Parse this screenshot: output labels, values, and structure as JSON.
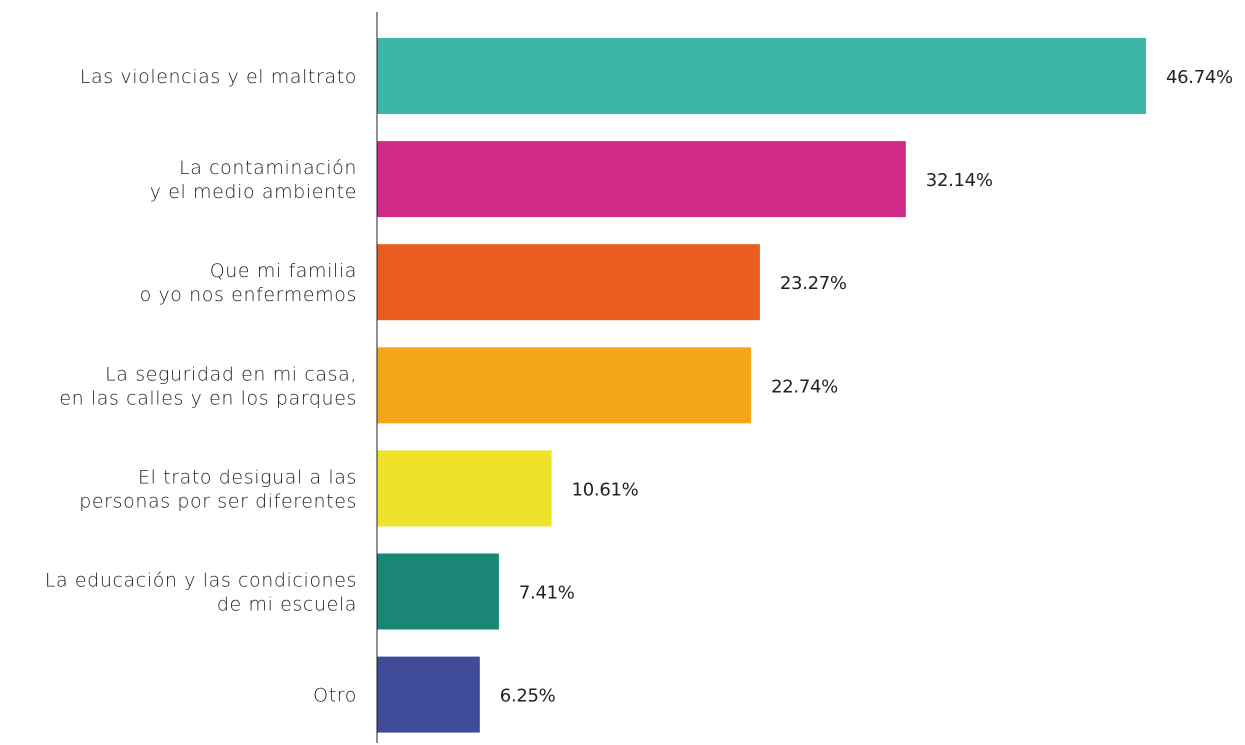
{
  "chart_data": {
    "type": "bar",
    "orientation": "horizontal",
    "title": "",
    "xlabel": "",
    "ylabel": "",
    "xlim": [
      0,
      46.74
    ],
    "grid": false,
    "categories": [
      [
        "Las violencias y el maltrato"
      ],
      [
        "La contaminación",
        "y el medio ambiente"
      ],
      [
        "Que mi familia",
        "o yo nos enfermemos"
      ],
      [
        "La seguridad en mi casa,",
        "en las calles y en los parques"
      ],
      [
        "El trato desigual a las",
        "personas por ser diferentes"
      ],
      [
        "La educación y las condiciones",
        "de mi escuela"
      ],
      [
        "Otro"
      ]
    ],
    "values": [
      46.74,
      32.14,
      23.27,
      22.74,
      10.61,
      7.41,
      6.25
    ],
    "value_labels": [
      "46.74%",
      "32.14%",
      "23.27%",
      "22.74%",
      "10.61%",
      "7.41%",
      "6.25%"
    ],
    "colors": [
      "#3db6aa",
      "#ce2a86",
      "#e95d1e",
      "#f4a518",
      "#efe22a",
      "#1a8676",
      "#3f4b99"
    ]
  }
}
